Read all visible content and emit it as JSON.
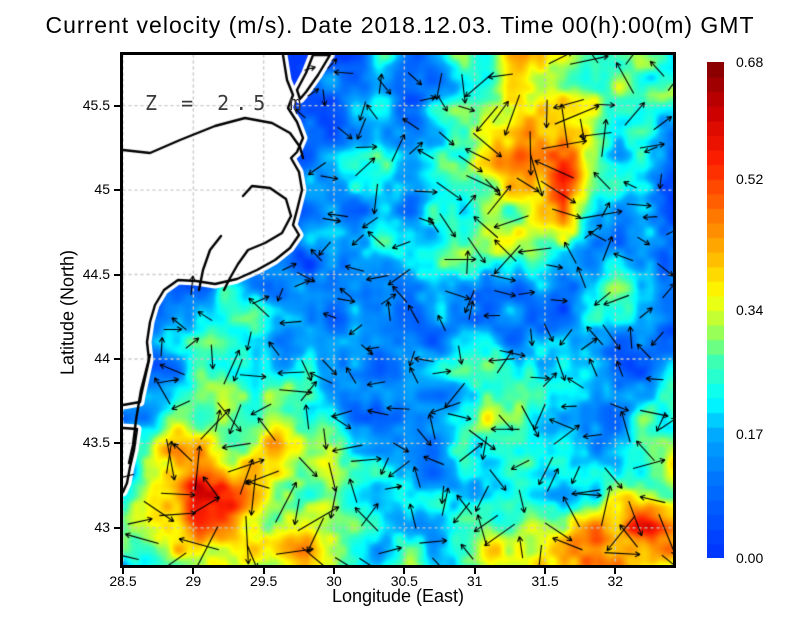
{
  "title": "Current velocity (m/s). Date 2018.12.03. Time 00(h):00(m) GMT",
  "annotation": {
    "text": "Z = 2.5 m"
  },
  "axes": {
    "x_label": "Longitude (East)",
    "y_label": "Latitude (North)",
    "x_range": [
      28.5,
      32.41
    ],
    "y_range": [
      42.78,
      45.8
    ],
    "x_ticks": [
      {
        "label": "28.5",
        "value": 28.5
      },
      {
        "label": "29",
        "value": 29
      },
      {
        "label": "29.5",
        "value": 29.5
      },
      {
        "label": "30",
        "value": 30
      },
      {
        "label": "30.5",
        "value": 30.5
      },
      {
        "label": "31",
        "value": 31
      },
      {
        "label": "31.5",
        "value": 31.5
      },
      {
        "label": "32",
        "value": 32
      }
    ],
    "y_ticks": [
      {
        "label": "43",
        "value": 43
      },
      {
        "label": "43.5",
        "value": 43.5
      },
      {
        "label": "44",
        "value": 44
      },
      {
        "label": "44.5",
        "value": 44.5
      },
      {
        "label": "45",
        "value": 45
      },
      {
        "label": "45.5",
        "value": 45.5
      }
    ],
    "grid_color": "#c9c9c9"
  },
  "colorbar": {
    "vmin": 0,
    "vmax": 0.68,
    "steps": 34,
    "ticks": [
      {
        "label": "0.68",
        "value": 0.68
      },
      {
        "label": "0.52",
        "value": 0.52
      },
      {
        "label": "0.34",
        "value": 0.34
      },
      {
        "label": "0.17",
        "value": 0.17
      },
      {
        "label": "0.00",
        "value": 0
      }
    ]
  },
  "chart_data": {
    "type": "heatmap",
    "quantity": "sea surface current speed",
    "units": "m/s",
    "depth_label": "Z = 2.5 m",
    "date": "2018.12.03",
    "time": "00(h):00(m) GMT",
    "lon_range": [
      28.5,
      32.41
    ],
    "lat_range": [
      42.78,
      45.8
    ],
    "vmin": 0,
    "vmax": 0.68,
    "colormap_stops": [
      [
        0.0,
        "#0030ff"
      ],
      [
        0.15,
        "#0070ff"
      ],
      [
        0.25,
        "#00aaff"
      ],
      [
        0.32,
        "#00ffff"
      ],
      [
        0.4,
        "#40ffb0"
      ],
      [
        0.46,
        "#9fff50"
      ],
      [
        0.53,
        "#ffff00"
      ],
      [
        0.62,
        "#ffb000"
      ],
      [
        0.7,
        "#ff7000"
      ],
      [
        0.8,
        "#ff2000"
      ],
      [
        0.9,
        "#cc0000"
      ],
      [
        1.0,
        "#800000"
      ]
    ],
    "speed_grid_note": "rows north(45.8) to south(42.78), cols west(28.5) to east(32.41), m/s, 0 = land",
    "speed_grid": [
      [
        0,
        0,
        0,
        0,
        0,
        0.05,
        0.08,
        0.18,
        0.1,
        0.25,
        0.3,
        0.42,
        0.3,
        0.2,
        0.25,
        0.15
      ],
      [
        0,
        0,
        0,
        0,
        0,
        0.06,
        0.1,
        0.15,
        0.12,
        0.2,
        0.3,
        0.35,
        0.4,
        0.25,
        0.3,
        0.35
      ],
      [
        0,
        0,
        0,
        0,
        0,
        0.08,
        0.12,
        0.2,
        0.15,
        0.25,
        0.3,
        0.45,
        0.4,
        0.3,
        0.2,
        0.12
      ],
      [
        0,
        0,
        0,
        0,
        0,
        0.1,
        0.15,
        0.22,
        0.2,
        0.3,
        0.35,
        0.45,
        0.5,
        0.3,
        0.15,
        0.1
      ],
      [
        0,
        0,
        0,
        0,
        0,
        0.1,
        0.12,
        0.18,
        0.15,
        0.25,
        0.3,
        0.4,
        0.55,
        0.2,
        0.12,
        0.1
      ],
      [
        0,
        0,
        0,
        0,
        0.05,
        0.1,
        0.15,
        0.2,
        0.2,
        0.3,
        0.35,
        0.3,
        0.2,
        0.15,
        0.1,
        0.15
      ],
      [
        0,
        0,
        0.15,
        0.2,
        0.15,
        0.12,
        0.1,
        0.12,
        0.15,
        0.2,
        0.15,
        0.12,
        0.15,
        0.25,
        0.2,
        0.12
      ],
      [
        0,
        0.1,
        0.2,
        0.25,
        0.2,
        0.15,
        0.12,
        0.1,
        0.12,
        0.15,
        0.12,
        0.1,
        0.12,
        0.2,
        0.15,
        0.1
      ],
      [
        0,
        0.12,
        0.25,
        0.3,
        0.25,
        0.18,
        0.15,
        0.12,
        0.15,
        0.2,
        0.25,
        0.3,
        0.2,
        0.15,
        0.12,
        0.15
      ],
      [
        0.1,
        0.2,
        0.3,
        0.35,
        0.3,
        0.2,
        0.15,
        0.12,
        0.15,
        0.2,
        0.3,
        0.3,
        0.15,
        0.12,
        0.2,
        0.25
      ],
      [
        0.15,
        0.35,
        0.4,
        0.35,
        0.45,
        0.35,
        0.25,
        0.2,
        0.18,
        0.2,
        0.25,
        0.3,
        0.2,
        0.15,
        0.25,
        0.3
      ],
      [
        0.2,
        0.35,
        0.62,
        0.5,
        0.4,
        0.3,
        0.25,
        0.2,
        0.15,
        0.18,
        0.2,
        0.25,
        0.2,
        0.2,
        0.3,
        0.35
      ],
      [
        0.25,
        0.4,
        0.5,
        0.45,
        0.35,
        0.4,
        0.3,
        0.25,
        0.2,
        0.25,
        0.3,
        0.35,
        0.3,
        0.45,
        0.55,
        0.45
      ],
      [
        0.2,
        0.3,
        0.4,
        0.35,
        0.3,
        0.45,
        0.3,
        0.2,
        0.25,
        0.2,
        0.35,
        0.3,
        0.4,
        0.5,
        0.45,
        0.35
      ]
    ],
    "noise": {
      "seed": 7,
      "octaves": [
        {
          "wavelength": 26,
          "amplitude": 0.085
        },
        {
          "wavelength": 11,
          "amplitude": 0.04
        }
      ]
    },
    "vector_field": {
      "seed": 20181203,
      "nx": 20,
      "ny": 18,
      "jitter": 9,
      "base_len": 9,
      "len_scale": 70,
      "head_len": 5.5,
      "color": "#000000"
    },
    "map": {
      "land_color": "#ffffff",
      "coast_color": "#000000",
      "coast_width": 2.4,
      "halo_width": 9,
      "mainland_coast": [
        [
          160,
          0
        ],
        [
          164,
          25
        ],
        [
          170,
          40
        ],
        [
          165,
          53
        ],
        [
          174,
          67
        ],
        [
          180,
          83
        ],
        [
          174,
          97
        ],
        [
          168,
          103
        ],
        [
          176,
          117
        ],
        [
          179,
          135
        ],
        [
          174,
          155
        ],
        [
          170,
          170
        ],
        [
          176,
          180
        ],
        [
          167,
          193
        ],
        [
          152,
          205
        ],
        [
          134,
          215
        ],
        [
          114,
          224
        ],
        [
          92,
          229
        ],
        [
          73,
          226
        ],
        [
          55,
          225
        ],
        [
          41,
          235
        ],
        [
          32,
          250
        ],
        [
          27,
          267
        ],
        [
          24,
          287
        ],
        [
          26,
          305
        ],
        [
          22,
          323
        ],
        [
          18,
          341
        ],
        [
          17,
          347
        ],
        [
          0,
          350
        ]
      ],
      "lower_strip": [
        [
          0,
          373
        ],
        [
          14,
          374
        ],
        [
          11,
          395
        ],
        [
          7,
          412
        ],
        [
          4,
          428
        ],
        [
          0,
          437
        ]
      ],
      "spit": [
        [
          190,
          0
        ],
        [
          207,
          0
        ],
        [
          195,
          20
        ],
        [
          183,
          37
        ],
        [
          177,
          44
        ],
        [
          174,
          35
        ],
        [
          183,
          18
        ]
      ],
      "river": [
        [
          0,
          95
        ],
        [
          27,
          98
        ],
        [
          57,
          85
        ],
        [
          92,
          71
        ],
        [
          122,
          63
        ],
        [
          149,
          68
        ],
        [
          167,
          78
        ],
        [
          177,
          92
        ],
        [
          180,
          103
        ]
      ],
      "lagoon": [
        [
          120,
          141
        ],
        [
          129,
          131
        ],
        [
          147,
          133
        ],
        [
          163,
          144
        ],
        [
          168,
          161
        ],
        [
          159,
          178
        ],
        [
          142,
          188
        ],
        [
          125,
          195
        ],
        [
          115,
          209
        ],
        [
          107,
          223
        ],
        [
          101,
          235
        ]
      ],
      "lagoon_inner": [
        [
          98,
          181
        ],
        [
          87,
          195
        ],
        [
          80,
          215
        ],
        [
          76,
          235
        ]
      ],
      "barrier": [
        [
          27,
          300
        ],
        [
          18,
          335
        ],
        [
          13,
          365
        ],
        [
          10,
          390
        ],
        [
          6,
          408
        ]
      ]
    }
  }
}
